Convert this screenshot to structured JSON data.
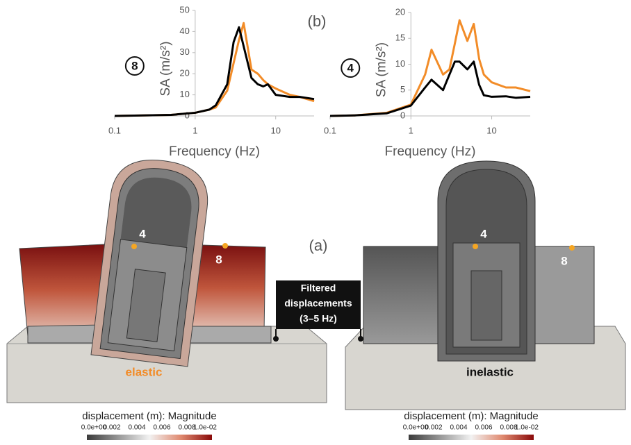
{
  "chart_data": [
    {
      "type": "line",
      "annotation": "8",
      "ylabel": "SA (m/s²)",
      "xlabel": "Frequency (Hz)",
      "log_x": true,
      "y_axis_crossing": 1,
      "x": [
        0.1,
        0.2,
        0.5,
        1,
        1.5,
        1.8,
        2.5,
        3,
        3.5,
        4,
        5,
        6,
        7,
        8,
        10,
        15,
        20,
        30
      ],
      "series": [
        {
          "color": "#f28c28",
          "values": [
            0,
            0.2,
            0.5,
            1.5,
            3,
            4,
            12,
            25,
            36,
            44,
            22,
            20,
            17,
            15,
            13,
            10,
            9,
            7
          ]
        },
        {
          "color": "#000000",
          "values": [
            0,
            0.2,
            0.5,
            1.5,
            3,
            5,
            15,
            35,
            42,
            33,
            18,
            15,
            14,
            15,
            10,
            9,
            9,
            8
          ]
        }
      ],
      "xlim": [
        0.1,
        30
      ],
      "xticks": [
        0.1,
        1,
        10
      ],
      "ylim": [
        0,
        50
      ],
      "yticks": [
        0,
        10,
        20,
        30,
        40,
        50
      ]
    },
    {
      "type": "line",
      "annotation": "4",
      "ylabel": "SA (m/s²)",
      "xlabel": "Frequency (Hz)",
      "log_x": true,
      "y_axis_crossing": 1,
      "x": [
        0.1,
        0.2,
        0.5,
        1,
        1.5,
        1.8,
        2.5,
        3,
        3.5,
        4,
        5,
        6,
        7,
        8,
        10,
        15,
        20,
        30
      ],
      "series": [
        {
          "color": "#f28c28",
          "values": [
            0,
            0.1,
            0.6,
            2.2,
            8,
            12.8,
            8,
            9,
            14,
            18.5,
            14.5,
            17.8,
            11,
            8,
            6.5,
            5.5,
            5.5,
            4.8
          ]
        },
        {
          "color": "#000000",
          "values": [
            0,
            0.1,
            0.5,
            2,
            5.5,
            7,
            5,
            8,
            10.5,
            10.5,
            9,
            10.5,
            6,
            4,
            3.7,
            3.8,
            3.5,
            3.7
          ]
        }
      ],
      "xlim": [
        0.1,
        30
      ],
      "xticks": [
        0.1,
        1,
        10
      ],
      "ylim": [
        0,
        20
      ],
      "yticks": [
        0,
        5,
        10,
        15,
        20
      ]
    }
  ],
  "figure": {
    "label_b": "(b)",
    "label_a": "(a)",
    "point_4": "4",
    "point_8": "8",
    "left_model": "elastic",
    "right_model": "inelastic",
    "callout": [
      "Filtered",
      "displacements",
      "(3–5 Hz)"
    ],
    "colorbar_title": "displacement (m): Magnitude",
    "colorbar_ticks": [
      "0.0e+00",
      "0.002",
      "0.004",
      "0.006",
      "0.008",
      "1.0e-02"
    ]
  }
}
